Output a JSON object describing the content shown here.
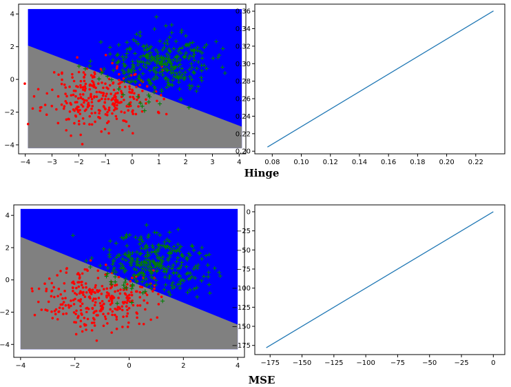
{
  "captions": {
    "top": "Hinge",
    "bottom": "MSE"
  },
  "colors": {
    "region_positive": "#0000ff",
    "region_negative": "#808080",
    "class_negative": "#ff0000",
    "class_positive": "#008000",
    "line": "#1f77b4"
  },
  "chart_data": [
    {
      "id": "hinge-decision",
      "type": "scatter",
      "title": "",
      "xlabel": "",
      "ylabel": "",
      "xlim": [
        -4.25,
        4.25
      ],
      "ylim": [
        -4.55,
        4.6
      ],
      "xticks": [
        -4,
        -3,
        -2,
        -1,
        0,
        1,
        2,
        3,
        4
      ],
      "yticks": [
        -4,
        -2,
        0,
        2,
        4
      ],
      "region": {
        "x": [
          -3.9,
          4.1
        ],
        "y": [
          -4.2,
          4.3
        ],
        "boundary": {
          "intercept": -0.35,
          "slope": -0.62
        }
      },
      "series": [
        {
          "class": "negative",
          "marker": "dot",
          "center": [
            -1.2,
            -1.1
          ],
          "spread": [
            1.0,
            0.95
          ],
          "count": 300,
          "seed": 11
        },
        {
          "class": "positive",
          "marker": "plus",
          "center": [
            0.95,
            0.9
          ],
          "spread": [
            1.0,
            0.95
          ],
          "count": 300,
          "seed": 23
        }
      ]
    },
    {
      "id": "hinge-line",
      "type": "line",
      "title": "",
      "xlabel": "",
      "ylabel": "",
      "xlim": [
        0.068,
        0.24
      ],
      "ylim": [
        0.197,
        0.368
      ],
      "xticks": [
        0.08,
        0.1,
        0.12,
        0.14,
        0.16,
        0.18,
        0.2,
        0.22
      ],
      "xtick_labels": [
        "0.08",
        "0.10",
        "0.12",
        "0.14",
        "0.16",
        "0.18",
        "0.20",
        "0.22"
      ],
      "yticks": [
        0.2,
        0.22,
        0.24,
        0.26,
        0.28,
        0.3,
        0.32,
        0.34,
        0.36
      ],
      "ytick_labels": [
        "0.20",
        "0.22",
        "0.24",
        "0.26",
        "0.28",
        "0.30",
        "0.32",
        "0.34",
        "0.36"
      ],
      "series": [
        {
          "x": [
            0.0767,
            0.2322
          ],
          "y": [
            0.2047,
            0.3603
          ]
        }
      ]
    },
    {
      "id": "mse-decision",
      "type": "scatter",
      "title": "",
      "xlabel": "",
      "ylabel": "",
      "xlim": [
        -4.25,
        4.25
      ],
      "ylim": [
        -4.8,
        4.65
      ],
      "xticks": [
        -4,
        -2,
        0,
        2,
        4
      ],
      "yticks": [
        -4,
        -2,
        0,
        2,
        4
      ],
      "region": {
        "x": [
          -4.0,
          4.0
        ],
        "y": [
          -4.3,
          4.4
        ],
        "boundary": {
          "intercept": -0.05,
          "slope": -0.68
        }
      },
      "series": [
        {
          "class": "negative",
          "marker": "dot",
          "center": [
            -1.2,
            -1.1
          ],
          "spread": [
            1.0,
            0.95
          ],
          "count": 300,
          "seed": 37
        },
        {
          "class": "positive",
          "marker": "plus",
          "center": [
            0.95,
            0.9
          ],
          "spread": [
            1.0,
            0.95
          ],
          "count": 300,
          "seed": 51
        }
      ]
    },
    {
      "id": "mse-line",
      "type": "line",
      "title": "",
      "xlabel": "",
      "ylabel": "",
      "xlim": [
        -187,
        9
      ],
      "ylim": [
        -187,
        9
      ],
      "xticks": [
        -175,
        -150,
        -125,
        -100,
        -75,
        -50,
        -25,
        0
      ],
      "yticks": [
        -175,
        -150,
        -125,
        -100,
        -75,
        -50,
        -25,
        0
      ],
      "series": [
        {
          "x": [
            -178,
            0
          ],
          "y": [
            -178,
            0
          ]
        }
      ]
    }
  ]
}
